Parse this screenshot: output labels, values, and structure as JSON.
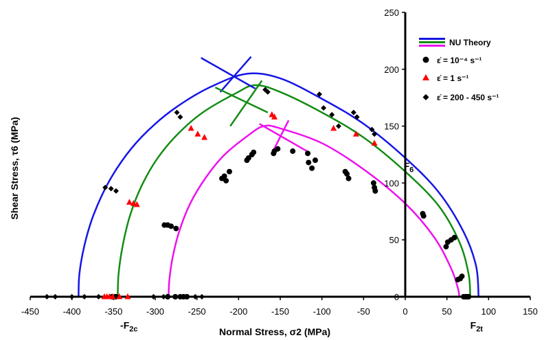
{
  "chart_data": {
    "type": "scatter",
    "title": "",
    "xlabel": "Normal Stress, σ2 (MPa)",
    "ylabel": "Shear Stress, τ6 (MPa)",
    "xlim": [
      -450,
      150
    ],
    "ylim": [
      0,
      250
    ],
    "x_ticks": [
      "-450",
      "-400",
      "-350",
      "-300",
      "-250",
      "-200",
      "-150",
      "-100",
      "-50",
      "0",
      "50",
      "100",
      "150"
    ],
    "y_ticks": [
      "0",
      "50",
      "100",
      "150",
      "200",
      "250"
    ],
    "grid": false,
    "legend_position": "top-right",
    "legend": [
      {
        "label": "NU Theory",
        "kind": "lines"
      },
      {
        "label": "ε̇ = 10⁻⁴ s⁻¹",
        "marker": "circle"
      },
      {
        "label": "ε̇ = 1 s⁻¹",
        "marker": "triangle"
      },
      {
        "label": "ε̇ = 200 - 450 s⁻¹",
        "marker": "diamond"
      }
    ],
    "annotations": [
      {
        "text": "F6",
        "x": -2,
        "y": 112
      },
      {
        "text": "-F2c",
        "x": -342,
        "y": -28
      },
      {
        "text": "F2t",
        "x": 78,
        "y": -28
      }
    ],
    "curves": [
      {
        "name": "blue",
        "color": "#1515e6",
        "x": [
          -392,
          -391,
          -385,
          -374,
          -355,
          -329,
          -300,
          -268,
          -232,
          -190,
          -150,
          -100,
          -50,
          0,
          40,
          70,
          85,
          88
        ],
        "y": [
          0,
          20,
          45,
          72,
          102,
          130,
          152,
          170,
          185,
          196,
          192,
          174,
          152,
          122,
          92,
          57,
          27,
          0
        ]
      },
      {
        "name": "green",
        "color": "#138c13",
        "x": [
          -345,
          -344,
          -339,
          -330,
          -316,
          -297,
          -273,
          -243,
          -203,
          -180,
          -150,
          -100,
          -50,
          0,
          40,
          65,
          76,
          78
        ],
        "y": [
          0,
          20,
          45,
          72,
          98,
          122,
          143,
          162,
          179,
          186,
          180,
          162,
          140,
          110,
          80,
          48,
          20,
          0
        ]
      },
      {
        "name": "magenta",
        "color": "#ee11ee",
        "x": [
          -284,
          -283,
          -279,
          -271,
          -258,
          -240,
          -218,
          -190,
          -170,
          -150,
          -100,
          -50,
          0,
          35,
          55,
          63,
          65
        ],
        "y": [
          0,
          15,
          35,
          58,
          82,
          104,
          124,
          141,
          150,
          148,
          135,
          112,
          82,
          52,
          25,
          8,
          0
        ]
      }
    ],
    "cross_lines": [
      {
        "color": "#1515e6",
        "x": [
          -245,
          -180
        ],
        "y": [
          210,
          183
        ]
      },
      {
        "color": "#1515e6",
        "x": [
          -222,
          -185
        ],
        "y": [
          180,
          211
        ]
      },
      {
        "color": "#138c13",
        "x": [
          -228,
          -165
        ],
        "y": [
          184,
          162
        ]
      },
      {
        "color": "#138c13",
        "x": [
          -210,
          -172
        ],
        "y": [
          150,
          190
        ]
      },
      {
        "color": "#ee11ee",
        "x": [
          -175,
          -118
        ],
        "y": [
          152,
          128
        ]
      },
      {
        "color": "#ee11ee",
        "x": [
          -160,
          -140
        ],
        "y": [
          126,
          155
        ]
      }
    ],
    "series": [
      {
        "name": "ε̇ = 10⁻⁴ s⁻¹",
        "marker": "circle",
        "color": "#000000",
        "x": [
          -352,
          -348,
          -347,
          -289,
          -285,
          -281,
          -275,
          -266,
          -285,
          -276,
          -270,
          -262,
          -220,
          -217,
          -215,
          -211,
          -190,
          -188,
          -184,
          -182,
          -158,
          -157,
          -153,
          -135,
          -117,
          -116,
          -112,
          -108,
          -72,
          -70,
          -68,
          -38,
          -37,
          -36,
          21,
          22,
          49,
          51,
          55,
          59,
          63,
          66,
          68,
          70,
          72,
          73,
          74,
          75,
          76
        ],
        "y": [
          0,
          0,
          0,
          63,
          63,
          62,
          60,
          0,
          0,
          0,
          0,
          0,
          104,
          106,
          102,
          110,
          120,
          122,
          125,
          127,
          126,
          128,
          130,
          128,
          126,
          118,
          113,
          120,
          110,
          108,
          104,
          100,
          96,
          93,
          73,
          71,
          44,
          48,
          50,
          52,
          15,
          16,
          18,
          0,
          0,
          0,
          0,
          0,
          0
        ]
      },
      {
        "name": "ε̇ = 1 s⁻¹",
        "marker": "triangle",
        "color": "#ff0000",
        "x": [
          -361,
          -358,
          -355,
          -351,
          -343,
          -333,
          -331,
          -326,
          -322,
          -257,
          -249,
          -241,
          -160,
          -157,
          -86,
          -59,
          -37
        ],
        "y": [
          0,
          0,
          0,
          0,
          0,
          0,
          83,
          82,
          81,
          148,
          143,
          140,
          160,
          158,
          148,
          143,
          135
        ]
      },
      {
        "name": "ε̇ = 200 - 450 s⁻¹",
        "marker": "diamond",
        "color": "#000000",
        "x": [
          -430,
          -420,
          -400,
          -385,
          -368,
          -360,
          -353,
          -347,
          -302,
          -290,
          -275,
          -267,
          -262,
          -252,
          -244,
          -274,
          -270,
          -168,
          -165,
          -103,
          -98,
          -88,
          -80,
          -62,
          -58,
          -40,
          -37
        ],
        "y": [
          0,
          0,
          0,
          0,
          0,
          96,
          95,
          93,
          0,
          0,
          0,
          0,
          0,
          0,
          0,
          162,
          158,
          182,
          180,
          178,
          166,
          160,
          150,
          162,
          158,
          147,
          143
        ]
      }
    ]
  }
}
